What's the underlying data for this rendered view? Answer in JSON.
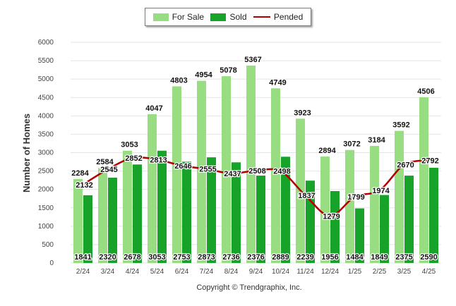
{
  "legend": {
    "for_sale": "For Sale",
    "sold": "Sold",
    "pended": "Pended"
  },
  "copyright": "Copyright © Trendgraphix, Inc.",
  "colors": {
    "for_sale": "#98dd82",
    "sold": "#17a32a",
    "pended": "#b20000"
  },
  "chart_data": {
    "type": "bar",
    "ylabel": "Number of Homes",
    "xlabel": "",
    "ylim": [
      0,
      6000
    ],
    "yticks": [
      0,
      500,
      1000,
      1500,
      2000,
      2500,
      3000,
      3500,
      4000,
      4500,
      5000,
      5500,
      6000
    ],
    "grid": true,
    "legend_position": "top-center",
    "categories": [
      "2/24",
      "3/24",
      "4/24",
      "5/24",
      "6/24",
      "7/24",
      "8/24",
      "9/24",
      "10/24",
      "11/24",
      "12/24",
      "1/25",
      "2/25",
      "3/25",
      "4/25"
    ],
    "series": [
      {
        "name": "For Sale",
        "type": "bar",
        "values": [
          2284,
          2584,
          3053,
          4047,
          4803,
          4954,
          5078,
          5367,
          4749,
          3923,
          2894,
          3072,
          3184,
          3592,
          4506
        ]
      },
      {
        "name": "Sold",
        "type": "bar",
        "values": [
          1841,
          2320,
          2678,
          3053,
          2753,
          2873,
          2736,
          2376,
          2889,
          2239,
          1956,
          1484,
          1849,
          2375,
          2590
        ]
      },
      {
        "name": "Pended",
        "type": "line",
        "values": [
          2132,
          2545,
          2852,
          2813,
          2646,
          2555,
          2437,
          2508,
          2498,
          1837,
          1279,
          1799,
          1974,
          2670,
          2792
        ]
      }
    ]
  }
}
